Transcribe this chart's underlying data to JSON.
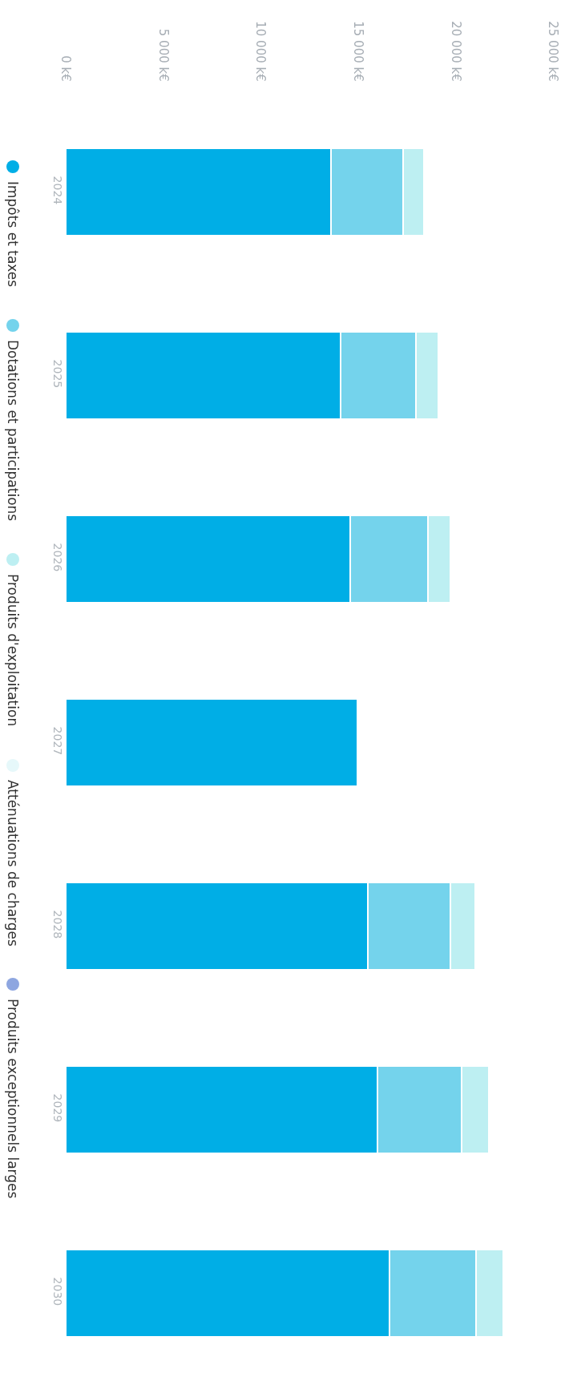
{
  "chart_data": {
    "type": "bar",
    "stacked": true,
    "orientation": "horizontal",
    "categories": [
      "2024",
      "2025",
      "2026",
      "2027",
      "2028",
      "2029",
      "2030"
    ],
    "series": [
      {
        "name": "Impôts et taxes",
        "color": "#00aee6",
        "values": [
          13600,
          14100,
          14600,
          14950,
          15500,
          16000,
          16600
        ]
      },
      {
        "name": "Dotations et participations",
        "color": "#74d3ec",
        "values": [
          3700,
          3850,
          4000,
          null,
          4250,
          4300,
          4450
        ]
      },
      {
        "name": "Produits d'exploitation",
        "color": "#bdeff2",
        "values": [
          1100,
          1150,
          1150,
          null,
          1250,
          1400,
          1400
        ]
      },
      {
        "name": "Atténuations de charges",
        "color": "#e6f8fa",
        "values": [
          null,
          null,
          null,
          null,
          null,
          null,
          null
        ]
      },
      {
        "name": "Produits exceptionnels larges",
        "color": "#8ea6e0",
        "values": [
          null,
          null,
          null,
          null,
          null,
          null,
          null
        ]
      }
    ],
    "xlim": [
      0,
      25000
    ],
    "xticks": [
      {
        "value": 0,
        "label": "0 k€"
      },
      {
        "value": 5000,
        "label": "5 000 k€"
      },
      {
        "value": 10000,
        "label": "10 000 k€"
      },
      {
        "value": 15000,
        "label": "15 000 k€"
      },
      {
        "value": 20000,
        "label": "20 000 k€"
      },
      {
        "value": 25000,
        "label": "25 000 k€"
      }
    ],
    "grid": false,
    "legend": "left"
  }
}
